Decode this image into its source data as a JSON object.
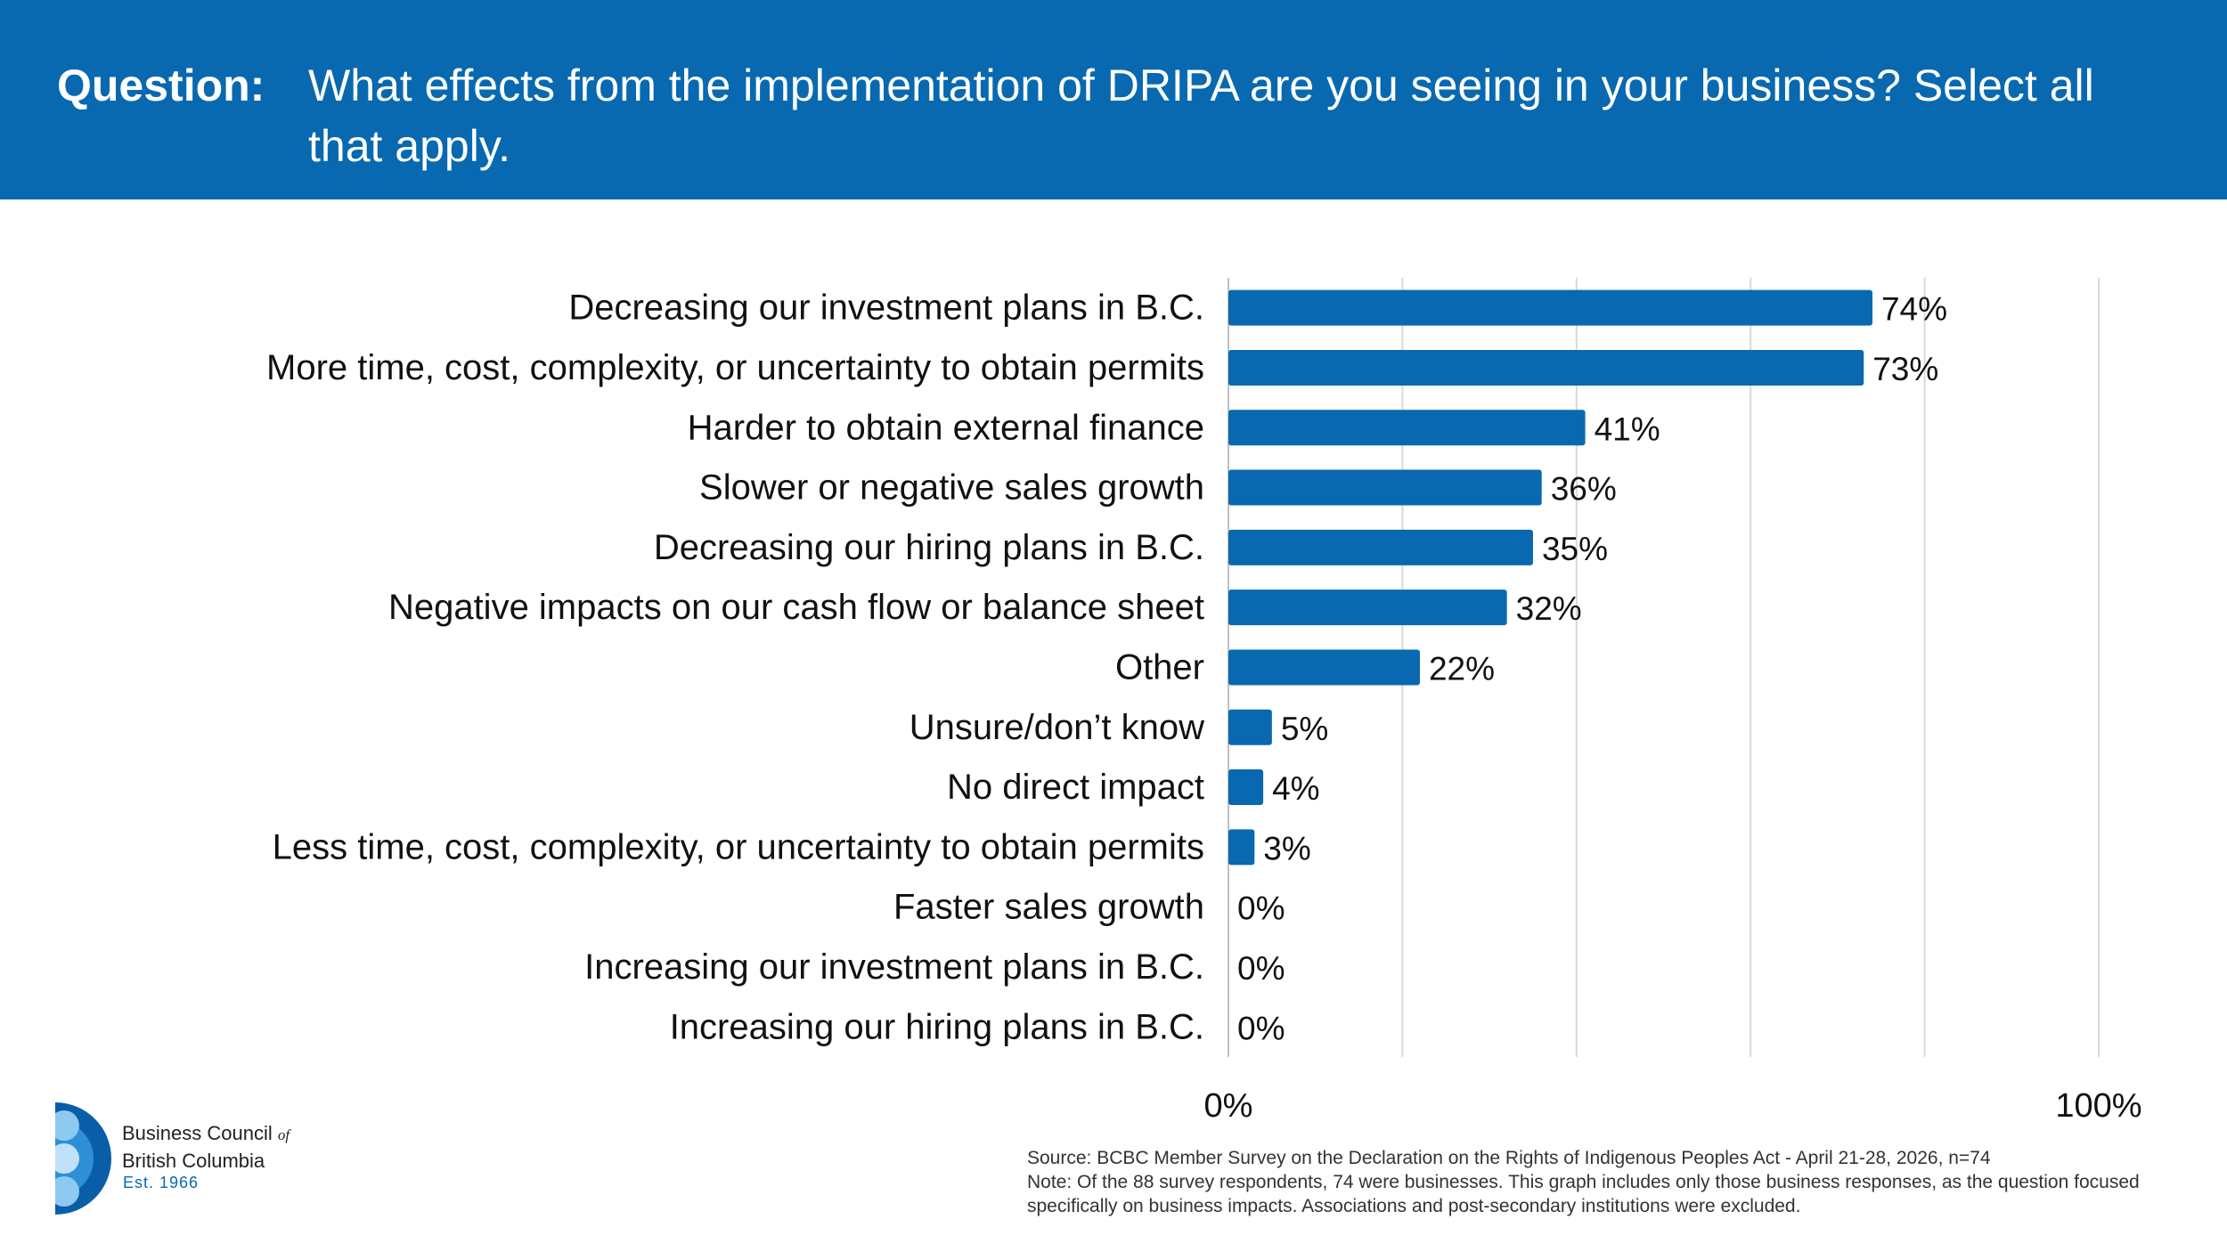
{
  "header": {
    "label": "Question:",
    "text": "What effects from the implementation of DRIPA are you seeing in your business? Select all that apply.",
    "bg_color": "#0869b0"
  },
  "chart_data": {
    "type": "bar",
    "orientation": "horizontal",
    "categories": [
      "Decreasing our investment plans in B.C.",
      "More time, cost, complexity, or uncertainty to obtain permits",
      "Harder to obtain external finance",
      "Slower or negative sales growth",
      "Decreasing our hiring plans in B.C.",
      "Negative impacts on our cash flow or balance sheet",
      "Other",
      "Unsure/don’t know",
      "No direct impact",
      "Less time, cost, complexity, or uncertainty to obtain permits",
      "Faster sales growth",
      "Increasing our investment plans in B.C.",
      "Increasing our hiring plans in B.C."
    ],
    "values": [
      74,
      73,
      41,
      36,
      35,
      32,
      22,
      5,
      4,
      3,
      0,
      0,
      0
    ],
    "value_labels": [
      "74%",
      "73%",
      "41%",
      "36%",
      "35%",
      "32%",
      "22%",
      "5%",
      "4%",
      "3%",
      "0%",
      "0%",
      "0%"
    ],
    "xlim": [
      0,
      100
    ],
    "x_tick_labels": [
      "0%",
      "100%"
    ],
    "grid": true,
    "bar_color": "#0869b0",
    "grid_color": "#d9d9d9"
  },
  "logo": {
    "line1": "Business Council",
    "of": "of",
    "line2": "British Columbia",
    "est": "Est. 1966"
  },
  "footnote": {
    "source": "Source: BCBC Member Survey on the Declaration on the Rights of Indigenous Peoples Act - April 21-28, 2026, n=74",
    "note": "Note: Of the 88 survey respondents, 74 were businesses. This graph includes only those business responses, as the question focused specifically on business impacts. Associations and post-secondary institutions were excluded."
  }
}
